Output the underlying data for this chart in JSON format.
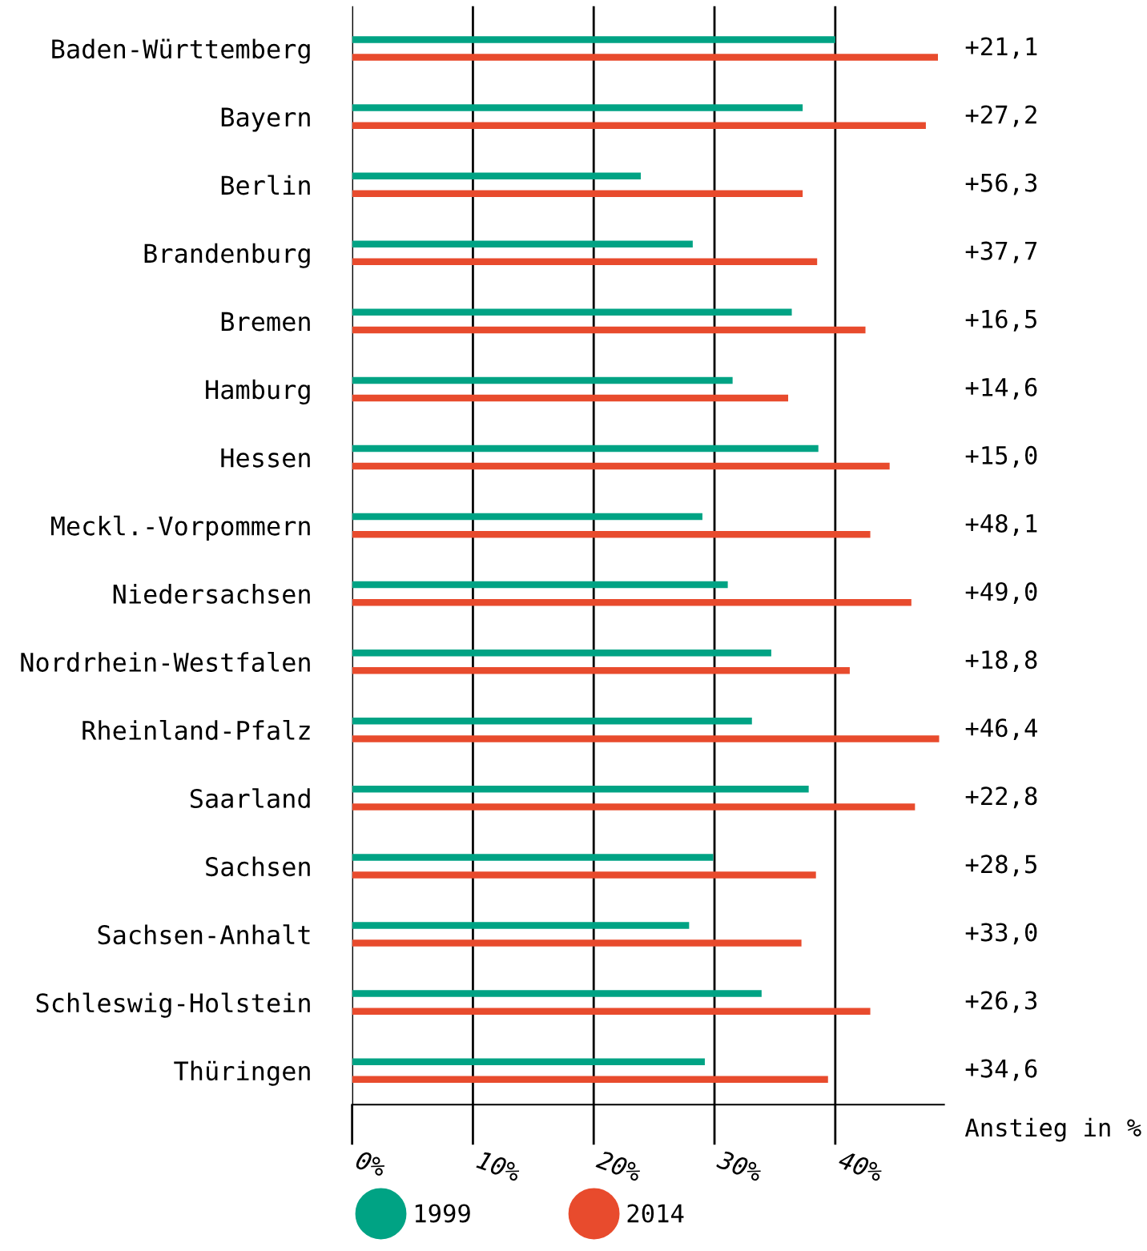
{
  "chart_data": {
    "type": "bar",
    "orientation": "horizontal",
    "xlabel": "Anstieg in %",
    "categories": [
      "Baden-Württemberg",
      "Bayern",
      "Berlin",
      "Brandenburg",
      "Bremen",
      "Hamburg",
      "Hessen",
      "Meckl.-Vorpommern",
      "Niedersachsen",
      "Nordrhein-Westfalen",
      "Rheinland-Pfalz",
      "Saarland",
      "Sachsen",
      "Sachsen-Anhalt",
      "Schleswig-Holstein",
      "Thüringen"
    ],
    "series": [
      {
        "name": "1999",
        "color": "#00a384",
        "values": [
          40.0,
          37.3,
          23.9,
          28.2,
          36.4,
          31.5,
          38.6,
          29.0,
          31.1,
          34.7,
          33.1,
          37.8,
          29.9,
          27.9,
          33.9,
          29.2
        ]
      },
      {
        "name": "2014",
        "color": "#e84b2d",
        "values": [
          48.5,
          47.5,
          37.3,
          38.5,
          42.5,
          36.1,
          44.5,
          42.9,
          46.3,
          41.2,
          48.6,
          46.6,
          38.4,
          37.2,
          42.9,
          39.4
        ]
      }
    ],
    "xlim": [
      0,
      49
    ],
    "xticks": [
      {
        "value": 0,
        "label": "0%"
      },
      {
        "value": 10,
        "label": "10%"
      },
      {
        "value": 20,
        "label": "20%"
      },
      {
        "value": 30,
        "label": "30%"
      },
      {
        "value": 40,
        "label": "40%"
      }
    ],
    "grid": "x",
    "legend": "bottom",
    "annotations": [
      "+21,1",
      "+27,2",
      "+56,3",
      "+37,7",
      "+16,5",
      "+14,6",
      "+15,0",
      "+48,1",
      "+49,0",
      "+18,8",
      "+46,4",
      "+22,8",
      "+28,5",
      "+33,0",
      "+26,3",
      "+34,6"
    ]
  }
}
